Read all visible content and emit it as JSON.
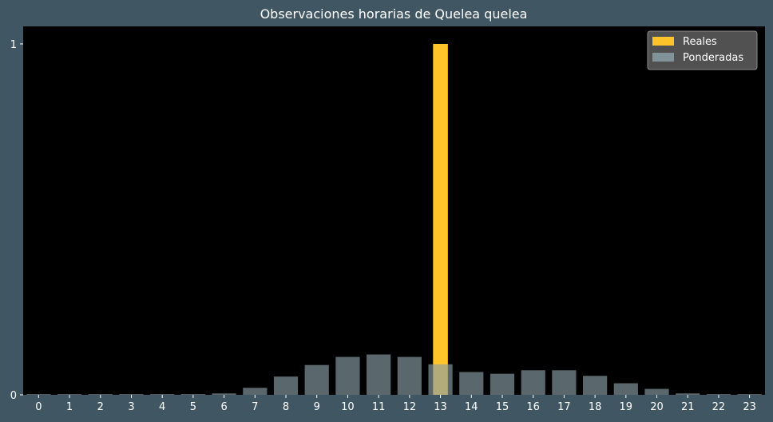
{
  "chart_data": {
    "type": "bar",
    "title": "Observaciones horarias de Quelea quelea",
    "xlabel": "",
    "ylabel": "",
    "categories": [
      "0",
      "1",
      "2",
      "3",
      "4",
      "5",
      "6",
      "7",
      "8",
      "9",
      "10",
      "11",
      "12",
      "13",
      "14",
      "15",
      "16",
      "17",
      "18",
      "19",
      "20",
      "21",
      "22",
      "23"
    ],
    "ylim": [
      0,
      1.05
    ],
    "yticks": [
      "0",
      "1"
    ],
    "ytick_values": [
      0,
      1
    ],
    "grid": false,
    "legend_position": "top-right",
    "series": [
      {
        "name": "Reales",
        "color": "#ffc42a",
        "values": [
          0,
          0,
          0,
          0,
          0,
          0,
          0,
          0,
          0,
          0,
          0,
          0,
          0,
          1,
          0,
          0,
          0,
          0,
          0,
          0,
          0,
          0,
          0,
          0
        ]
      },
      {
        "name": "Ponderadas",
        "color": "#8a9ea6",
        "values": [
          0.002,
          0.002,
          0.002,
          0.002,
          0.002,
          0.002,
          0.004,
          0.02,
          0.052,
          0.085,
          0.108,
          0.115,
          0.108,
          0.087,
          0.065,
          0.06,
          0.07,
          0.07,
          0.054,
          0.033,
          0.017,
          0.004,
          0.002,
          0.002
        ]
      }
    ],
    "colors": {
      "figure_background": "#405662",
      "plot_background": "#000000",
      "legend_background": "#5a5a5a",
      "text": "#ffffff"
    }
  }
}
